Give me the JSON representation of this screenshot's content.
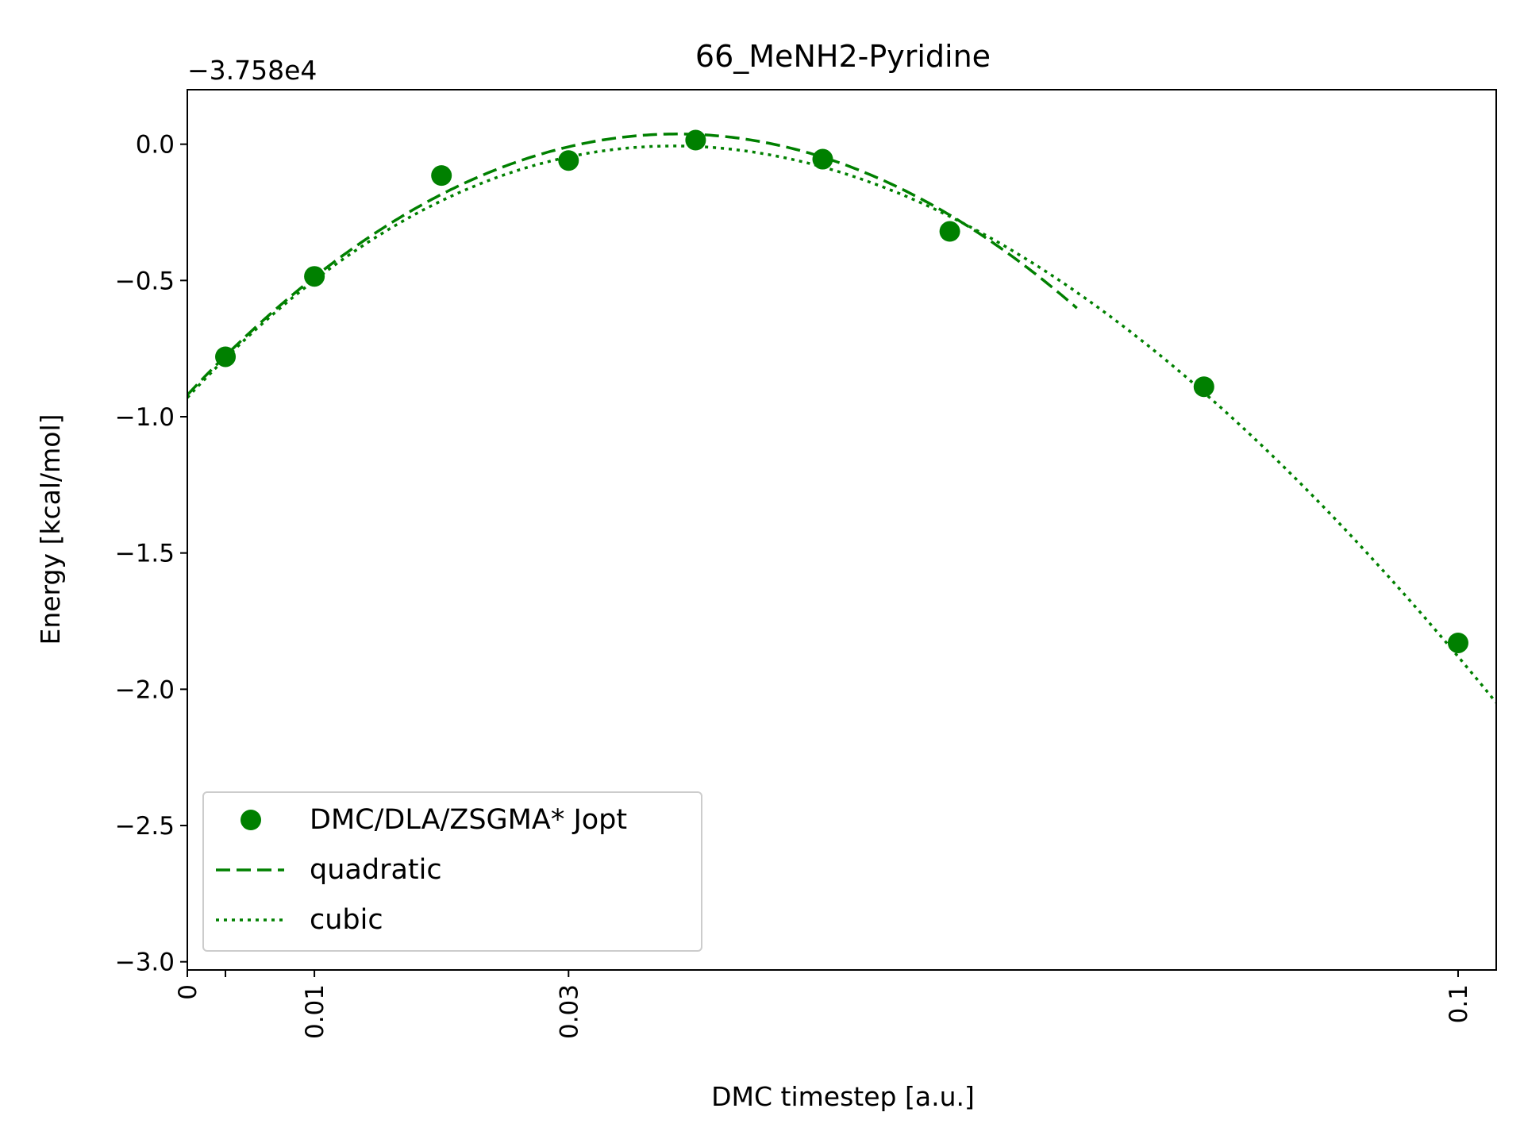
{
  "chart_data": {
    "type": "scatter",
    "title": "66_MeNH2-Pyridine",
    "xlabel": "DMC timestep [a.u.]",
    "ylabel": "Energy [kcal/mol]",
    "y_offset_label": "−3.758e4",
    "xlim": [
      0,
      0.103
    ],
    "ylim": [
      -3.03,
      0.2
    ],
    "x_ticks": [
      {
        "value": 0,
        "label": "0"
      },
      {
        "value": 0.003,
        "label": ""
      },
      {
        "value": 0.01,
        "label": "0.01"
      },
      {
        "value": 0.03,
        "label": "0.03"
      },
      {
        "value": 0.1,
        "label": "0.1"
      }
    ],
    "x_tick_rotation": "vertical",
    "y_ticks": [
      {
        "value": 0.0,
        "label": "0.0"
      },
      {
        "value": -0.5,
        "label": "−0.5"
      },
      {
        "value": -1.0,
        "label": "−1.0"
      },
      {
        "value": -1.5,
        "label": "−1.5"
      },
      {
        "value": -2.0,
        "label": "−2.0"
      },
      {
        "value": -2.5,
        "label": "−2.5"
      },
      {
        "value": -3.0,
        "label": "−3.0"
      }
    ],
    "grid": false,
    "legend_position": "lower-left",
    "color": "#008000",
    "series": [
      {
        "name": "DMC/DLA/ZSGMA* Jopt",
        "style": "markers",
        "points": [
          {
            "x": 0.003,
            "y": -0.78,
            "err": 0.02
          },
          {
            "x": 0.01,
            "y": -0.485,
            "err": 0.02
          },
          {
            "x": 0.02,
            "y": -0.115,
            "err": 0.03
          },
          {
            "x": 0.03,
            "y": -0.06,
            "err": 0.02
          },
          {
            "x": 0.04,
            "y": 0.015,
            "err": 0.02
          },
          {
            "x": 0.05,
            "y": -0.055,
            "err": 0.02
          },
          {
            "x": 0.06,
            "y": -0.32,
            "err": 0.02
          },
          {
            "x": 0.08,
            "y": -0.89,
            "err": 0.02
          },
          {
            "x": 0.1,
            "y": -1.83,
            "err": 0.02
          }
        ]
      },
      {
        "name": "quadratic",
        "style": "dashed",
        "coefficients": [
          -0.92,
          49.7,
          -645
        ],
        "x_range": [
          0,
          0.07
        ]
      },
      {
        "name": "cubic",
        "style": "dotted",
        "coefficients": [
          -0.93,
          50.3,
          -737,
          1390
        ],
        "x_range": [
          0,
          0.103
        ]
      }
    ]
  }
}
